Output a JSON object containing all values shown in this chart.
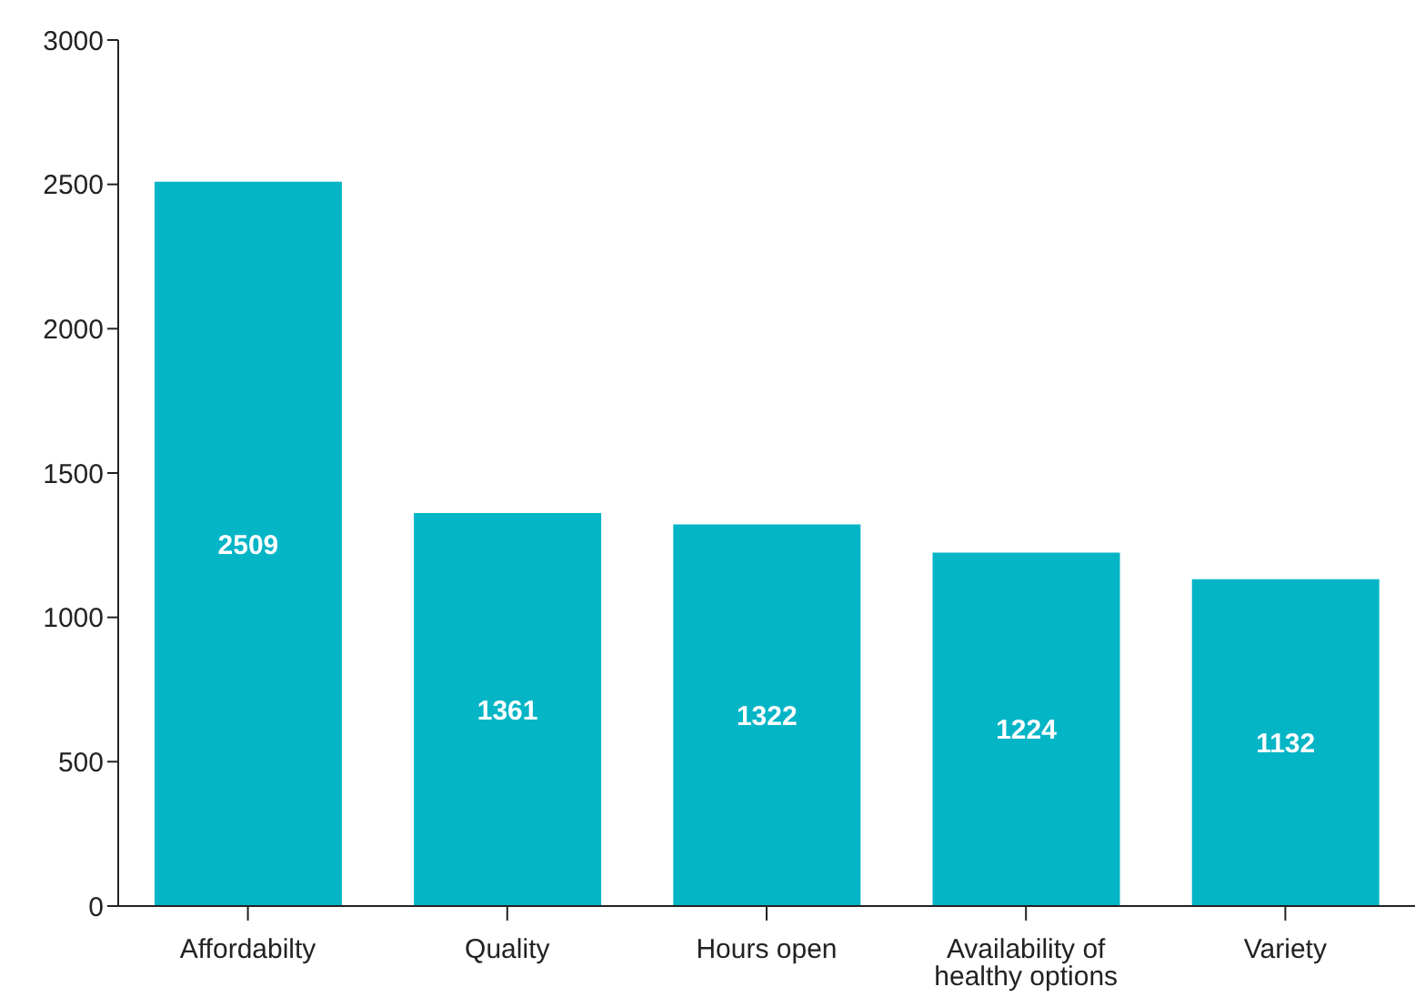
{
  "chart_data": {
    "type": "bar",
    "categories": [
      "Affordabilty",
      "Quality",
      "Hours open",
      "Availability of healthy options",
      "Variety"
    ],
    "values": [
      2509,
      1361,
      1322,
      1224,
      1132
    ],
    "color": "#04b5c6",
    "ylim": [
      0,
      3000
    ],
    "yticks": [
      0,
      500,
      1000,
      1500,
      2000,
      2500,
      3000
    ],
    "grid": false,
    "data_labels": true
  }
}
